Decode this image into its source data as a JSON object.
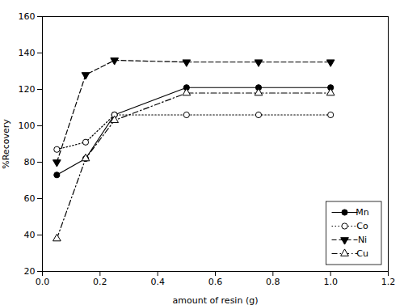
{
  "chart_data": {
    "type": "line",
    "xlabel": "amount of resin (g)",
    "ylabel": "%Recovery",
    "xlim": [
      0,
      1.2
    ],
    "ylim": [
      20,
      160
    ],
    "xticks": [
      {
        "value": 0,
        "label": "0.0"
      },
      0.2,
      0.4,
      0.6,
      0.8,
      {
        "value": 1,
        "label": "1.0"
      },
      1.2
    ],
    "yticks": [
      20,
      40,
      60,
      80,
      100,
      120,
      140,
      160
    ],
    "grid": false,
    "legend": "lower right",
    "x": [
      0.05,
      0.15,
      0.25,
      0.5,
      0.75,
      1.0
    ],
    "series": [
      {
        "name": "Mn",
        "color": "black",
        "marker": "circle",
        "line_style": "solid",
        "values": [
          73,
          82,
          106,
          121,
          121,
          121
        ]
      },
      {
        "name": "Co",
        "color": "black",
        "marker": "circle-open",
        "line_style": "dotted",
        "values": [
          87,
          91,
          106,
          106,
          106,
          106
        ]
      },
      {
        "name": "Ni",
        "color": "black",
        "marker": "triangle-down",
        "line_style": "dashed",
        "values": [
          80,
          128,
          136,
          135,
          135,
          135
        ]
      },
      {
        "name": "Cu",
        "color": "black",
        "marker": "triangle-up-open",
        "line_style": "dashdot",
        "values": [
          38,
          82,
          103,
          118,
          118,
          118
        ]
      }
    ]
  }
}
